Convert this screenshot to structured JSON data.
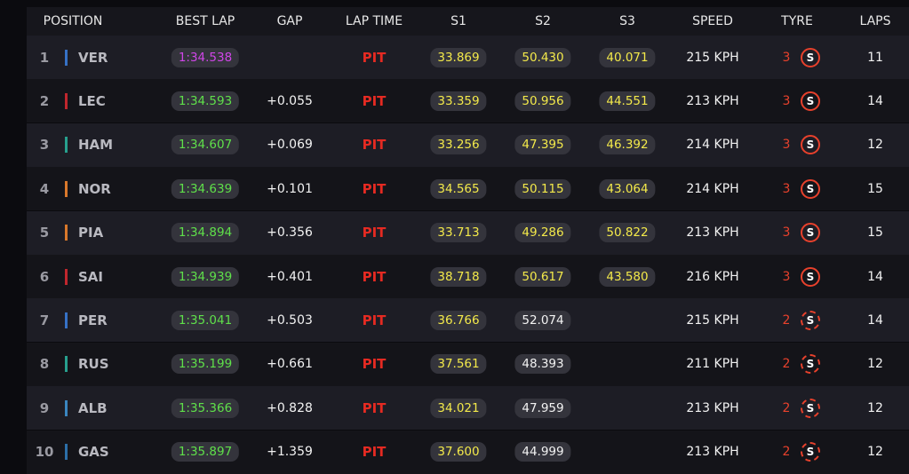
{
  "columns": [
    "POSITION",
    "BEST LAP",
    "GAP",
    "LAP TIME",
    "S1",
    "S2",
    "S3",
    "SPEED",
    "TYRE",
    "LAPS"
  ],
  "rows": [
    {
      "position": 1,
      "team_color": "#3671c6",
      "driver": "VER",
      "best_lap": "1:34.538",
      "best_lap_color": "#d046e8",
      "gap": null,
      "lap_time": "PIT",
      "s1": "33.869",
      "s1_color": "#f3e94a",
      "s2": "50.430",
      "s2_color": "#f3e94a",
      "s3": "40.071",
      "s3_color": "#f3e94a",
      "speed": "215 KPH",
      "tyre_age": 3,
      "tyre": "S",
      "tyre_used": false,
      "laps": 11
    },
    {
      "position": 2,
      "team_color": "#c0262d",
      "driver": "LEC",
      "best_lap": "1:34.593",
      "best_lap_color": "#5fe04a",
      "gap": "+0.055",
      "lap_time": "PIT",
      "s1": "33.359",
      "s1_color": "#f3e94a",
      "s2": "50.956",
      "s2_color": "#f3e94a",
      "s3": "44.551",
      "s3_color": "#f3e94a",
      "speed": "213 KPH",
      "tyre_age": 3,
      "tyre": "S",
      "tyre_used": false,
      "laps": 14
    },
    {
      "position": 3,
      "team_color": "#27a08e",
      "driver": "HAM",
      "best_lap": "1:34.607",
      "best_lap_color": "#5fe04a",
      "gap": "+0.069",
      "lap_time": "PIT",
      "s1": "33.256",
      "s1_color": "#f3e94a",
      "s2": "47.395",
      "s2_color": "#f3e94a",
      "s3": "46.392",
      "s3_color": "#f3e94a",
      "speed": "214 KPH",
      "tyre_age": 3,
      "tyre": "S",
      "tyre_used": false,
      "laps": 12
    },
    {
      "position": 4,
      "team_color": "#d9782b",
      "driver": "NOR",
      "best_lap": "1:34.639",
      "best_lap_color": "#5fe04a",
      "gap": "+0.101",
      "lap_time": "PIT",
      "s1": "34.565",
      "s1_color": "#f3e94a",
      "s2": "50.115",
      "s2_color": "#f3e94a",
      "s3": "43.064",
      "s3_color": "#f3e94a",
      "speed": "214 KPH",
      "tyre_age": 3,
      "tyre": "S",
      "tyre_used": false,
      "laps": 15
    },
    {
      "position": 5,
      "team_color": "#d9782b",
      "driver": "PIA",
      "best_lap": "1:34.894",
      "best_lap_color": "#5fe04a",
      "gap": "+0.356",
      "lap_time": "PIT",
      "s1": "33.713",
      "s1_color": "#f3e94a",
      "s2": "49.286",
      "s2_color": "#f3e94a",
      "s3": "50.822",
      "s3_color": "#f3e94a",
      "speed": "213 KPH",
      "tyre_age": 3,
      "tyre": "S",
      "tyre_used": false,
      "laps": 15
    },
    {
      "position": 6,
      "team_color": "#c0262d",
      "driver": "SAI",
      "best_lap": "1:34.939",
      "best_lap_color": "#5fe04a",
      "gap": "+0.401",
      "lap_time": "PIT",
      "s1": "38.718",
      "s1_color": "#f3e94a",
      "s2": "50.617",
      "s2_color": "#f3e94a",
      "s3": "43.580",
      "s3_color": "#f3e94a",
      "speed": "216 KPH",
      "tyre_age": 3,
      "tyre": "S",
      "tyre_used": false,
      "laps": 14
    },
    {
      "position": 7,
      "team_color": "#3671c6",
      "driver": "PER",
      "best_lap": "1:35.041",
      "best_lap_color": "#5fe04a",
      "gap": "+0.503",
      "lap_time": "PIT",
      "s1": "36.766",
      "s1_color": "#f3e94a",
      "s2": "52.074",
      "s2_color": "#f2f2f2",
      "s3": null,
      "s3_color": null,
      "speed": "215 KPH",
      "tyre_age": 2,
      "tyre": "S",
      "tyre_used": true,
      "laps": 14
    },
    {
      "position": 8,
      "team_color": "#27a08e",
      "driver": "RUS",
      "best_lap": "1:35.199",
      "best_lap_color": "#5fe04a",
      "gap": "+0.661",
      "lap_time": "PIT",
      "s1": "37.561",
      "s1_color": "#f3e94a",
      "s2": "48.393",
      "s2_color": "#f2f2f2",
      "s3": null,
      "s3_color": null,
      "speed": "211 KPH",
      "tyre_age": 2,
      "tyre": "S",
      "tyre_used": true,
      "laps": 12
    },
    {
      "position": 9,
      "team_color": "#3a86c0",
      "driver": "ALB",
      "best_lap": "1:35.366",
      "best_lap_color": "#5fe04a",
      "gap": "+0.828",
      "lap_time": "PIT",
      "s1": "34.021",
      "s1_color": "#f3e94a",
      "s2": "47.959",
      "s2_color": "#f2f2f2",
      "s3": null,
      "s3_color": null,
      "speed": "213 KPH",
      "tyre_age": 2,
      "tyre": "S",
      "tyre_used": true,
      "laps": 12
    },
    {
      "position": 10,
      "team_color": "#2c6fa8",
      "driver": "GAS",
      "best_lap": "1:35.897",
      "best_lap_color": "#5fe04a",
      "gap": "+1.359",
      "lap_time": "PIT",
      "s1": "37.600",
      "s1_color": "#f3e94a",
      "s2": "44.999",
      "s2_color": "#f2f2f2",
      "s3": null,
      "s3_color": null,
      "speed": "213 KPH",
      "tyre_age": 2,
      "tyre": "S",
      "tyre_used": true,
      "laps": 12
    }
  ]
}
